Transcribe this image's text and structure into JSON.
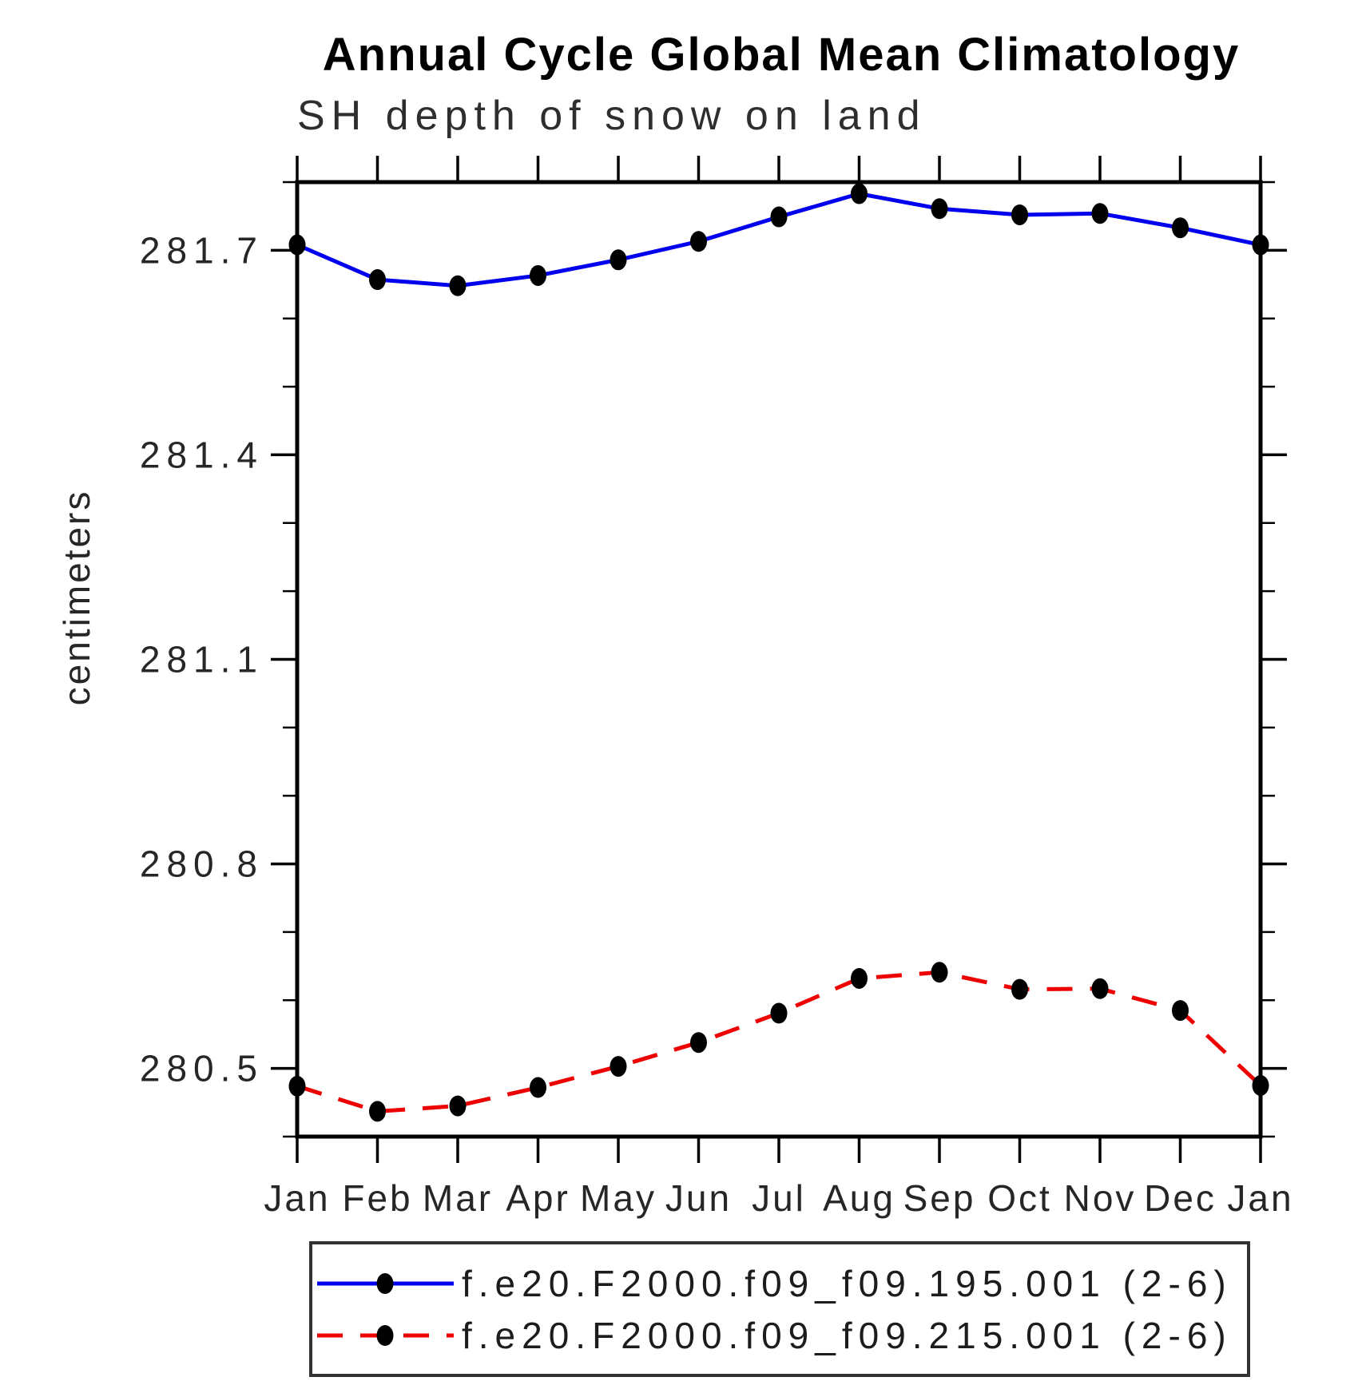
{
  "title": "Annual Cycle Global Mean Climatology",
  "subtitle": "SH depth of snow on land",
  "ylabel": "centimeters",
  "colors": {
    "series1": "#0000ee",
    "series2": "#ee0000",
    "marker": "#000000",
    "axis": "#000000"
  },
  "chart_data": {
    "type": "line",
    "title": "Annual Cycle Global Mean Climatology",
    "subtitle": "SH depth of snow on land",
    "ylabel": "centimeters",
    "x_categories": [
      "Jan",
      "Feb",
      "Mar",
      "Apr",
      "May",
      "Jun",
      "Jul",
      "Aug",
      "Sep",
      "Oct",
      "Nov",
      "Dec",
      "Jan"
    ],
    "ylim": [
      280.4,
      281.8
    ],
    "yticks": [
      280.5,
      280.8,
      281.1,
      281.4,
      281.7
    ],
    "ytick_labels": [
      "280.5",
      "280.8",
      "281.1",
      "281.4",
      "281.7"
    ],
    "minor_tick_step": 0.1,
    "grid": false,
    "legend_position": "bottom",
    "series": [
      {
        "name": "f.e20.F2000.f09_f09.195.001 (2-6)",
        "color": "#0000ee",
        "line_style": "solid",
        "marker": "filled-black-circle",
        "values": [
          281.708,
          281.657,
          281.648,
          281.663,
          281.686,
          281.713,
          281.749,
          281.783,
          281.761,
          281.752,
          281.754,
          281.733,
          281.708
        ]
      },
      {
        "name": "f.e20.F2000.f09_f09.215.001 (2-6)",
        "color": "#ee0000",
        "line_style": "dashed",
        "marker": "filled-black-circle",
        "values": [
          280.474,
          280.437,
          280.445,
          280.472,
          280.503,
          280.538,
          280.581,
          280.632,
          280.641,
          280.616,
          280.617,
          280.585,
          280.475
        ]
      }
    ]
  }
}
